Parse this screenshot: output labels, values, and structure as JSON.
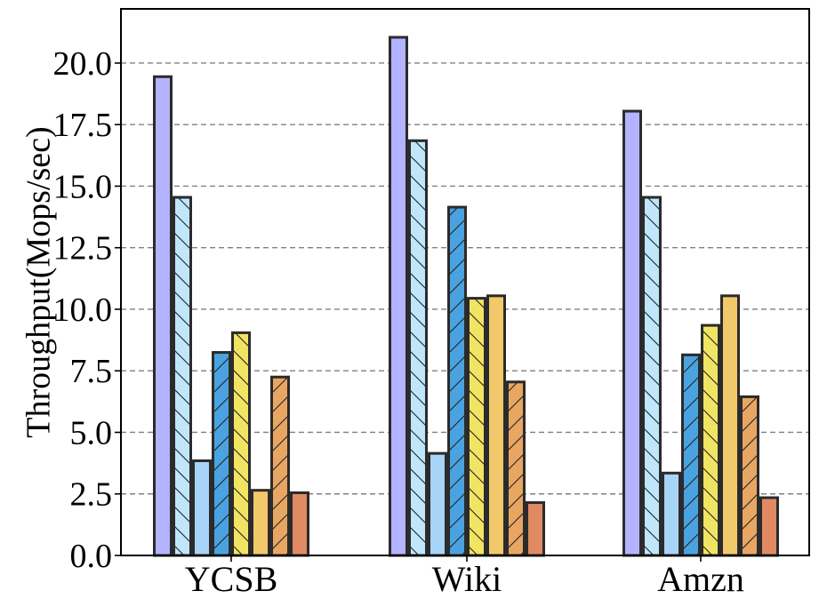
{
  "chart_data": {
    "type": "bar",
    "ylabel": "Throughput(Mops/sec)",
    "xlabel": "",
    "ylim": [
      0,
      22.2
    ],
    "yticks": [
      "0.0",
      "2.5",
      "5.0",
      "7.5",
      "10.0",
      "12.5",
      "15.0",
      "17.5",
      "20.0"
    ],
    "grid": "horizontal dashed",
    "legend": "none",
    "categories": [
      "YCSB",
      "Wiki",
      "Amzn"
    ],
    "series": [
      {
        "color": "#b3b3ff",
        "hatch": "none",
        "values": [
          19.5,
          21.1,
          18.1
        ]
      },
      {
        "color": "#bfe6fa",
        "hatch": "backslash",
        "values": [
          14.6,
          16.9,
          14.6
        ]
      },
      {
        "color": "#a8d4f8",
        "hatch": "none",
        "values": [
          3.9,
          4.2,
          3.4
        ]
      },
      {
        "color": "#4aa3e0",
        "hatch": "slash",
        "values": [
          8.3,
          14.2,
          8.2
        ]
      },
      {
        "color": "#f2e463",
        "hatch": "backslash",
        "values": [
          9.1,
          10.5,
          9.4
        ]
      },
      {
        "color": "#f1c96a",
        "hatch": "none",
        "values": [
          2.7,
          10.6,
          10.6
        ]
      },
      {
        "color": "#e8a663",
        "hatch": "slash",
        "values": [
          7.3,
          7.1,
          6.5
        ]
      },
      {
        "color": "#e08a63",
        "hatch": "none",
        "values": [
          2.6,
          2.2,
          2.4
        ]
      }
    ]
  }
}
